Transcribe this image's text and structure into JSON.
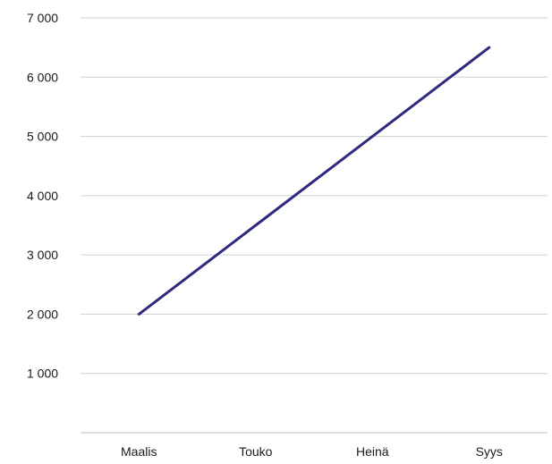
{
  "chart_data": {
    "type": "line",
    "title": "",
    "xlabel": "",
    "ylabel": "",
    "categories": [
      "Maalis",
      "Touko",
      "Heinä",
      "Syys"
    ],
    "series": [
      {
        "color": "#2e2a7f",
        "values": [
          2000,
          3500,
          5000,
          6500
        ]
      }
    ],
    "ylim": [
      0,
      7000
    ],
    "yticks": [
      1000,
      2000,
      3000,
      4000,
      5000,
      6000,
      7000
    ],
    "ytick_labels": [
      "1 000",
      "2 000",
      "3 000",
      "4 000",
      "5 000",
      "6 000",
      "7 000"
    ],
    "grid": true,
    "legend": "none"
  }
}
